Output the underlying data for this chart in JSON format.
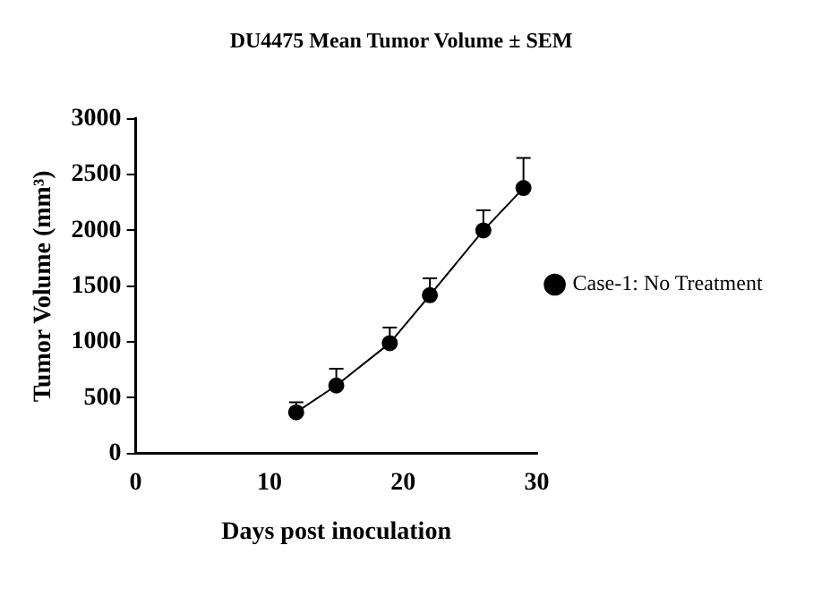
{
  "chart_data": {
    "type": "line",
    "title": "DU4475 Mean Tumor Volume ± SEM",
    "xlabel": "Days post inoculation",
    "ylabel": "Tumor Volume (mm³)",
    "x": [
      12,
      15,
      19,
      22,
      26,
      29
    ],
    "series": [
      {
        "name": "Case-1: No Treatment",
        "color": "#000000",
        "values": [
          370,
          610,
          990,
          1420,
          2000,
          2380
        ],
        "errors": [
          [
            370,
            460
          ],
          [
            610,
            760
          ],
          [
            990,
            1130
          ],
          [
            1420,
            1570
          ],
          [
            2000,
            2180
          ],
          [
            2380,
            2650
          ]
        ]
      }
    ],
    "xlim": [
      0,
      30
    ],
    "xticks": [
      0,
      10,
      20,
      30
    ],
    "ylim": [
      0,
      3000
    ],
    "yticks": [
      0,
      500,
      1000,
      1500,
      2000,
      2500,
      3000
    ],
    "grid": false,
    "legend": "right",
    "marker": "circle",
    "line_style": "solid"
  }
}
